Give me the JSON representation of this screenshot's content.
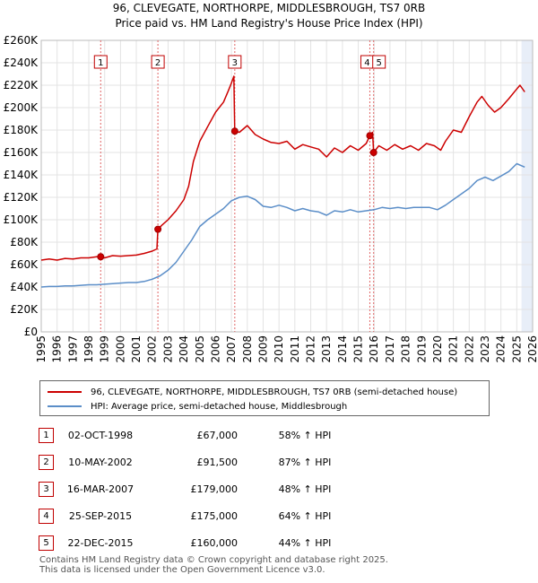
{
  "title": {
    "line1": "96, CLEVEGATE, NORTHORPE, MIDDLESBROUGH, TS7 0RB",
    "line2": "Price paid vs. HM Land Registry's House Price Index (HPI)"
  },
  "legend": {
    "property": "96, CLEVEGATE, NORTHORPE, MIDDLESBROUGH, TS7 0RB (semi-detached house)",
    "hpi": "HPI: Average price, semi-detached house, Middlesbrough"
  },
  "colors": {
    "property": "#cc0000",
    "hpi": "#5b8ec8",
    "grid": "#e3e3e3",
    "vline": "#e06666",
    "shade": "#e8eef8"
  },
  "sales": [
    {
      "num": "1",
      "date": "02-OCT-1998",
      "price": "£67,000",
      "hpi": "58% ↑ HPI"
    },
    {
      "num": "2",
      "date": "10-MAY-2002",
      "price": "£91,500",
      "hpi": "87% ↑ HPI"
    },
    {
      "num": "3",
      "date": "16-MAR-2007",
      "price": "£179,000",
      "hpi": "48% ↑ HPI"
    },
    {
      "num": "4",
      "date": "25-SEP-2015",
      "price": "£175,000",
      "hpi": "64% ↑ HPI"
    },
    {
      "num": "5",
      "date": "22-DEC-2015",
      "price": "£160,000",
      "hpi": "44% ↑ HPI"
    }
  ],
  "footer": {
    "line1": "Contains HM Land Registry data © Crown copyright and database right 2025.",
    "line2": "This data is licensed under the Open Government Licence v3.0."
  },
  "chart_data": {
    "type": "line",
    "xlim": [
      1995,
      2026
    ],
    "ylim": [
      0,
      260000
    ],
    "x_ticks": [
      "1995",
      "1996",
      "1997",
      "1998",
      "1999",
      "2000",
      "2001",
      "2002",
      "2003",
      "2004",
      "2005",
      "2006",
      "2007",
      "2008",
      "2009",
      "2010",
      "2011",
      "2012",
      "2013",
      "2014",
      "2015",
      "2016",
      "2017",
      "2018",
      "2019",
      "2020",
      "2021",
      "2022",
      "2023",
      "2024",
      "2025",
      "2026"
    ],
    "y_ticks": [
      {
        "v": 0,
        "label": "£0"
      },
      {
        "v": 20000,
        "label": "£20K"
      },
      {
        "v": 40000,
        "label": "£40K"
      },
      {
        "v": 60000,
        "label": "£60K"
      },
      {
        "v": 80000,
        "label": "£80K"
      },
      {
        "v": 100000,
        "label": "£100K"
      },
      {
        "v": 120000,
        "label": "£120K"
      },
      {
        "v": 140000,
        "label": "£140K"
      },
      {
        "v": 160000,
        "label": "£160K"
      },
      {
        "v": 180000,
        "label": "£180K"
      },
      {
        "v": 200000,
        "label": "£200K"
      },
      {
        "v": 220000,
        "label": "£220K"
      },
      {
        "v": 240000,
        "label": "£240K"
      },
      {
        "v": 260000,
        "label": "£260K"
      }
    ],
    "forecast_start": 2025.3,
    "sale_points": [
      {
        "label": "1",
        "x": 1998.75,
        "y": 67000
      },
      {
        "label": "2",
        "x": 2002.36,
        "y": 91500
      },
      {
        "label": "3",
        "x": 2007.21,
        "y": 179000
      },
      {
        "label": "4",
        "x": 2015.73,
        "y": 175000
      },
      {
        "label": "5",
        "x": 2015.97,
        "y": 160000
      }
    ],
    "series": [
      {
        "name": "96, CLEVEGATE, NORTHORPE, MIDDLESBROUGH, TS7 0RB (semi-detached house)",
        "points": [
          [
            1995.0,
            64000
          ],
          [
            1995.5,
            65000
          ],
          [
            1996.0,
            64000
          ],
          [
            1996.5,
            65500
          ],
          [
            1997.0,
            65000
          ],
          [
            1997.5,
            66000
          ],
          [
            1998.0,
            66000
          ],
          [
            1998.5,
            67000
          ],
          [
            1998.75,
            67000
          ],
          [
            1999.0,
            66000
          ],
          [
            1999.5,
            68000
          ],
          [
            2000.0,
            67500
          ],
          [
            2000.5,
            68000
          ],
          [
            2001.0,
            68500
          ],
          [
            2001.5,
            70000
          ],
          [
            2002.0,
            72000
          ],
          [
            2002.3,
            74000
          ],
          [
            2002.36,
            91500
          ],
          [
            2002.6,
            95000
          ],
          [
            2003.0,
            100000
          ],
          [
            2003.5,
            108000
          ],
          [
            2004.0,
            118000
          ],
          [
            2004.3,
            130000
          ],
          [
            2004.6,
            152000
          ],
          [
            2005.0,
            170000
          ],
          [
            2005.5,
            183000
          ],
          [
            2006.0,
            196000
          ],
          [
            2006.5,
            205000
          ],
          [
            2006.8,
            215000
          ],
          [
            2007.0,
            222000
          ],
          [
            2007.15,
            228000
          ],
          [
            2007.21,
            179000
          ],
          [
            2007.5,
            178000
          ],
          [
            2008.0,
            184000
          ],
          [
            2008.5,
            176000
          ],
          [
            2009.0,
            172000
          ],
          [
            2009.5,
            169000
          ],
          [
            2010.0,
            168000
          ],
          [
            2010.5,
            170000
          ],
          [
            2011.0,
            163000
          ],
          [
            2011.5,
            167000
          ],
          [
            2012.0,
            165000
          ],
          [
            2012.5,
            163000
          ],
          [
            2013.0,
            156000
          ],
          [
            2013.5,
            164000
          ],
          [
            2014.0,
            160000
          ],
          [
            2014.5,
            166000
          ],
          [
            2015.0,
            162000
          ],
          [
            2015.5,
            168000
          ],
          [
            2015.73,
            175000
          ],
          [
            2015.9,
            178000
          ],
          [
            2015.97,
            160000
          ],
          [
            2016.3,
            166000
          ],
          [
            2016.8,
            162000
          ],
          [
            2017.3,
            167000
          ],
          [
            2017.8,
            163000
          ],
          [
            2018.3,
            166000
          ],
          [
            2018.8,
            162000
          ],
          [
            2019.3,
            168000
          ],
          [
            2019.8,
            166000
          ],
          [
            2020.2,
            162000
          ],
          [
            2020.5,
            170000
          ],
          [
            2021.0,
            180000
          ],
          [
            2021.5,
            178000
          ],
          [
            2022.0,
            192000
          ],
          [
            2022.5,
            205000
          ],
          [
            2022.8,
            210000
          ],
          [
            2023.2,
            202000
          ],
          [
            2023.6,
            196000
          ],
          [
            2024.0,
            200000
          ],
          [
            2024.5,
            208000
          ],
          [
            2024.9,
            215000
          ],
          [
            2025.2,
            220000
          ],
          [
            2025.5,
            214000
          ]
        ]
      },
      {
        "name": "HPI: Average price, semi-detached house, Middlesbrough",
        "points": [
          [
            1995.0,
            40000
          ],
          [
            1995.5,
            40500
          ],
          [
            1996.0,
            40500
          ],
          [
            1996.5,
            41000
          ],
          [
            1997.0,
            41000
          ],
          [
            1997.5,
            41500
          ],
          [
            1998.0,
            42000
          ],
          [
            1998.5,
            42000
          ],
          [
            1999.0,
            42500
          ],
          [
            1999.5,
            43000
          ],
          [
            2000.0,
            43500
          ],
          [
            2000.5,
            44000
          ],
          [
            2001.0,
            44000
          ],
          [
            2001.5,
            45000
          ],
          [
            2002.0,
            47000
          ],
          [
            2002.5,
            50000
          ],
          [
            2003.0,
            55000
          ],
          [
            2003.5,
            62000
          ],
          [
            2004.0,
            72000
          ],
          [
            2004.5,
            82000
          ],
          [
            2005.0,
            94000
          ],
          [
            2005.5,
            100000
          ],
          [
            2006.0,
            105000
          ],
          [
            2006.5,
            110000
          ],
          [
            2007.0,
            117000
          ],
          [
            2007.5,
            120000
          ],
          [
            2008.0,
            121000
          ],
          [
            2008.5,
            118000
          ],
          [
            2009.0,
            112000
          ],
          [
            2009.5,
            111000
          ],
          [
            2010.0,
            113000
          ],
          [
            2010.5,
            111000
          ],
          [
            2011.0,
            108000
          ],
          [
            2011.5,
            110000
          ],
          [
            2012.0,
            108000
          ],
          [
            2012.5,
            107000
          ],
          [
            2013.0,
            104000
          ],
          [
            2013.5,
            108000
          ],
          [
            2014.0,
            107000
          ],
          [
            2014.5,
            109000
          ],
          [
            2015.0,
            107000
          ],
          [
            2015.5,
            108000
          ],
          [
            2016.0,
            109000
          ],
          [
            2016.5,
            111000
          ],
          [
            2017.0,
            110000
          ],
          [
            2017.5,
            111000
          ],
          [
            2018.0,
            110000
          ],
          [
            2018.5,
            111000
          ],
          [
            2019.0,
            111000
          ],
          [
            2019.5,
            111000
          ],
          [
            2020.0,
            109000
          ],
          [
            2020.5,
            113000
          ],
          [
            2021.0,
            118000
          ],
          [
            2021.5,
            123000
          ],
          [
            2022.0,
            128000
          ],
          [
            2022.5,
            135000
          ],
          [
            2023.0,
            138000
          ],
          [
            2023.5,
            135000
          ],
          [
            2024.0,
            139000
          ],
          [
            2024.5,
            143000
          ],
          [
            2025.0,
            150000
          ],
          [
            2025.5,
            147000
          ]
        ]
      }
    ]
  }
}
